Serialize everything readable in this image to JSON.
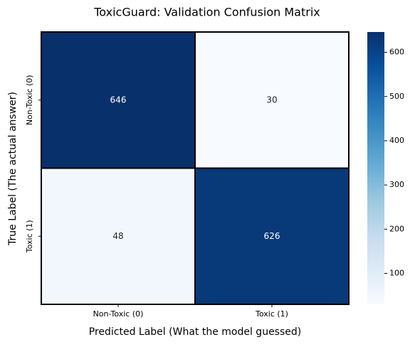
{
  "chart_data": {
    "type": "heatmap",
    "title": "ToxicGuard: Validation Confusion Matrix",
    "x_label": "Predicted Label (What the model guessed)",
    "y_label": "True Label (The actual answer)",
    "x_categories": [
      "Non-Toxic (0)",
      "Toxic (1)"
    ],
    "y_categories": [
      "Non-Toxic (0)",
      "Toxic (1)"
    ],
    "values": [
      [
        646,
        30
      ],
      [
        48,
        626
      ]
    ],
    "colormap": "Blues",
    "zlim": [
      30,
      646
    ],
    "zticks": [
      100,
      200,
      300,
      400,
      500,
      600
    ],
    "cell_border_color": "#000000"
  }
}
